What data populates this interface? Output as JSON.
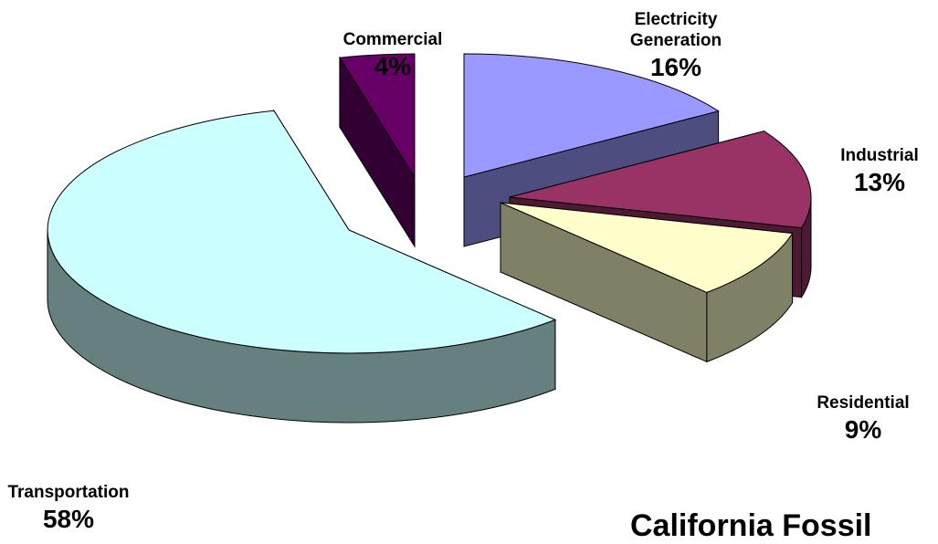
{
  "chart_data": {
    "type": "pie",
    "title": "California Fossil",
    "slices": [
      {
        "label": "Electricity Generation",
        "value": 16,
        "pct_label": "16%",
        "top_color": "#9999ff",
        "side_color": "#4d4d80"
      },
      {
        "label": "Industrial",
        "value": 13,
        "pct_label": "13%",
        "top_color": "#993366",
        "side_color": "#4d1a33"
      },
      {
        "label": "Residential",
        "value": 9,
        "pct_label": "9%",
        "top_color": "#ffffcc",
        "side_color": "#808066"
      },
      {
        "label": "Transportation",
        "value": 58,
        "pct_label": "58%",
        "top_color": "#ccffff",
        "side_color": "#668080"
      },
      {
        "label": "Commercial",
        "value": 4,
        "pct_label": "4%",
        "top_color": "#660066",
        "side_color": "#330033"
      }
    ],
    "style": "3d-exploded"
  }
}
